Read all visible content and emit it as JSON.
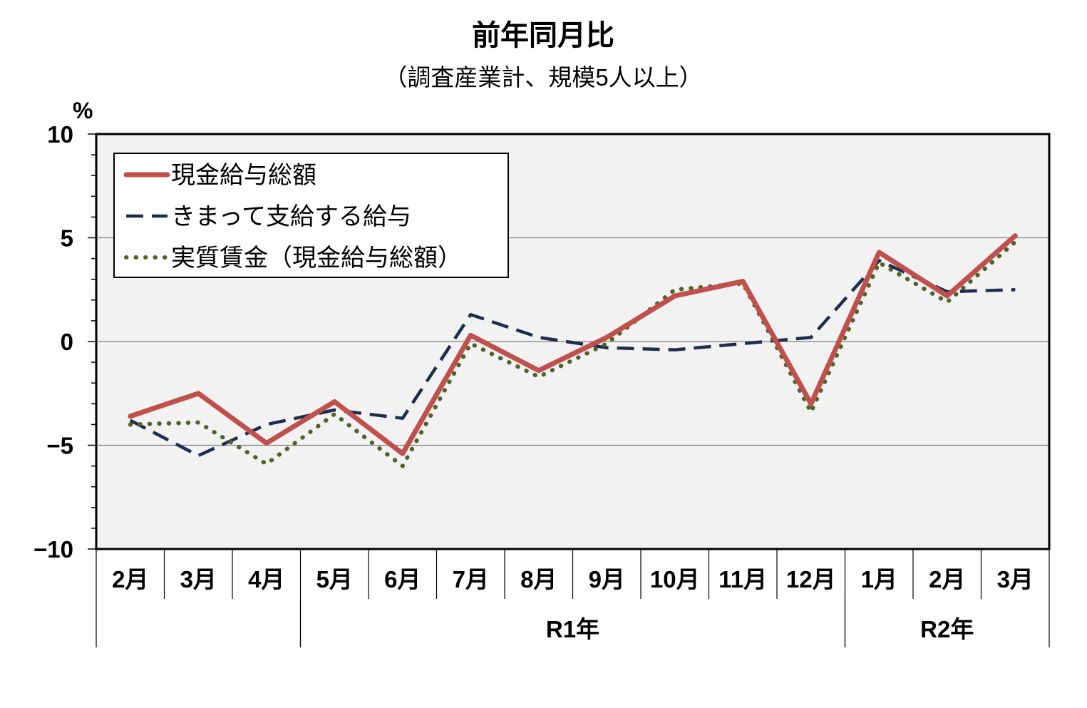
{
  "chart_data": {
    "type": "line",
    "title": "前年同月比",
    "subtitle": "（調査産業計、規模5人以上）",
    "ylabel": "%",
    "ylim": [
      -10,
      10
    ],
    "yticks": [
      10,
      5,
      0,
      -5,
      -10
    ],
    "ytick_labels": [
      "10",
      "5",
      "0",
      "−5",
      "−10"
    ],
    "grid": true,
    "legend_position": "top-left",
    "categories": [
      "2月",
      "3月",
      "4月",
      "5月",
      "6月",
      "7月",
      "8月",
      "9月",
      "10月",
      "11月",
      "12月",
      "1月",
      "2月",
      "3月"
    ],
    "groups": [
      {
        "label": "",
        "start": 0,
        "end": 2
      },
      {
        "label": "R1年",
        "start": 3,
        "end": 10
      },
      {
        "label": "R2年",
        "start": 11,
        "end": 13
      }
    ],
    "series": [
      {
        "name": "現金給与総額",
        "color": "#c0504d",
        "style": "solid",
        "values": [
          -3.6,
          -2.5,
          -4.9,
          -2.9,
          -5.4,
          0.3,
          -1.4,
          0.2,
          2.2,
          2.9,
          -3.0,
          4.3,
          2.2,
          5.1
        ]
      },
      {
        "name": "きまって支給する給与",
        "color": "#1f2d4d",
        "style": "dashed",
        "values": [
          -3.8,
          -5.5,
          -4.0,
          -3.3,
          -3.7,
          1.3,
          0.2,
          -0.3,
          -0.4,
          -0.1,
          0.2,
          3.9,
          2.4,
          2.5
        ]
      },
      {
        "name": "実質賃金（現金給与総額）",
        "color": "#4f6228",
        "style": "dotted",
        "values": [
          -4.0,
          -3.9,
          -5.9,
          -3.5,
          -6.0,
          -0.1,
          -1.7,
          -0.1,
          2.5,
          2.8,
          -3.4,
          3.8,
          1.9,
          4.8
        ]
      }
    ]
  }
}
